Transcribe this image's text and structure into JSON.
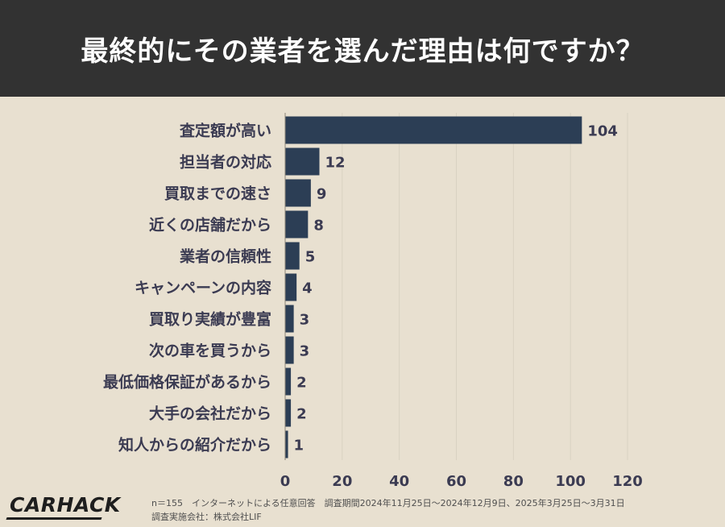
{
  "header": {
    "title": "最終的にその業者を選んだ理由は何ですか？"
  },
  "colors": {
    "header_bg": "#323232",
    "panel_bg": "#e8e0d0",
    "bar": "#2c3e55",
    "text": "#3b3b52",
    "grid": "#d9d2c2"
  },
  "chart_data": {
    "type": "bar",
    "orientation": "horizontal",
    "categories": [
      "査定額が高い",
      "担当者の対応",
      "買取までの速さ",
      "近くの店舗だから",
      "業者の信頼性",
      "キャンペーンの内容",
      "買取り実績が豊富",
      "次の車を買うから",
      "最低価格保証があるから",
      "大手の会社だから",
      "知人からの紹介だから"
    ],
    "values": [
      104,
      12,
      9,
      8,
      5,
      4,
      3,
      3,
      2,
      2,
      1
    ],
    "xticks": [
      "0",
      "20",
      "40",
      "60",
      "80",
      "100",
      "120"
    ],
    "xlim": [
      0,
      120
    ],
    "grid": true,
    "data_labels": true
  },
  "footer": {
    "line1": "n＝155　インターネットによる任意回答　調査期間2024年11月25日～2024年12月9日、2025年3月25日～3月31日",
    "line2": "調査実施会社：株式会社LIF"
  },
  "logo": {
    "text": "CARHACK"
  }
}
